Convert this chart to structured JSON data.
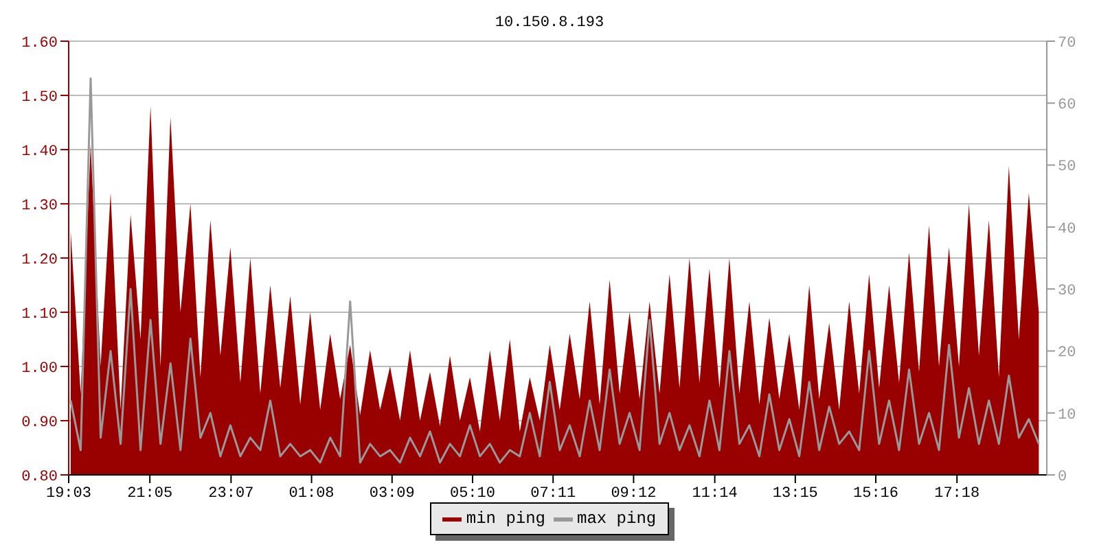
{
  "chart_data": {
    "type": "area",
    "title": "10.150.8.193",
    "x": [
      "--01-01T19:06",
      "--01-01T19:21",
      "--01-01T19:36",
      "--01-01T19:51",
      "--01-01T20:06",
      "--01-01T20:21",
      "--01-01T20:36",
      "--01-01T20:51",
      "--01-01T21:06",
      "--01-01T21:21",
      "--01-01T21:36",
      "--01-01T21:51",
      "--01-01T22:06",
      "--01-01T22:21",
      "--01-01T22:36",
      "--01-01T22:51",
      "--01-01T23:06",
      "--01-01T23:21",
      "--01-01T23:36",
      "--01-01T23:51",
      "--01-02T00:06",
      "--01-02T00:21",
      "--01-02T00:36",
      "--01-02T00:51",
      "--01-02T01:06",
      "--01-02T01:21",
      "--01-02T01:36",
      "--01-02T01:51",
      "--01-02T02:06",
      "--01-02T02:21",
      "--01-02T02:36",
      "--01-02T02:51",
      "--01-02T03:06",
      "--01-02T03:21",
      "--01-02T03:36",
      "--01-02T03:51",
      "--01-02T04:06",
      "--01-02T04:21",
      "--01-02T04:36",
      "--01-02T04:51",
      "--01-02T05:06",
      "--01-02T05:21",
      "--01-02T05:36",
      "--01-02T05:51",
      "--01-02T06:06",
      "--01-02T06:21",
      "--01-02T06:36",
      "--01-02T06:51",
      "--01-02T07:06",
      "--01-02T07:21",
      "--01-02T07:36",
      "--01-02T07:51",
      "--01-02T08:06",
      "--01-02T08:21",
      "--01-02T08:36",
      "--01-02T08:51",
      "--01-02T09:06",
      "--01-02T09:21",
      "--01-02T09:36",
      "--01-02T09:51",
      "--01-02T10:06",
      "--01-02T10:21",
      "--01-02T10:36",
      "--01-02T10:51",
      "--01-02T11:06",
      "--01-02T11:21",
      "--01-02T11:36",
      "--01-02T11:51",
      "--01-02T12:06",
      "--01-02T12:21",
      "--01-02T12:36",
      "--01-02T12:51",
      "--01-02T13:06",
      "--01-02T13:21",
      "--01-02T13:36",
      "--01-02T13:51",
      "--01-02T14:06",
      "--01-02T14:21",
      "--01-02T14:36",
      "--01-02T14:51",
      "--01-02T15:06",
      "--01-02T15:21",
      "--01-02T15:36",
      "--01-02T15:51",
      "--01-02T16:06",
      "--01-02T16:21",
      "--01-02T16:36",
      "--01-02T16:51",
      "--01-02T17:06",
      "--01-02T17:21",
      "--01-02T17:36",
      "--01-02T17:51",
      "--01-02T18:06",
      "--01-02T18:21",
      "--01-02T18:36",
      "--01-02T18:51",
      "--01-02T19:06",
      "--01-02T19:21"
    ],
    "series": [
      {
        "name": "min ping",
        "color": "#990000",
        "values": [
          1.25,
          0.95,
          1.41,
          1.0,
          1.32,
          0.92,
          1.28,
          1.05,
          1.48,
          1.0,
          1.46,
          1.1,
          1.3,
          0.98,
          1.27,
          1.02,
          1.22,
          0.97,
          1.2,
          0.95,
          1.15,
          0.96,
          1.13,
          0.93,
          1.1,
          0.92,
          1.06,
          0.94,
          1.04,
          0.91,
          1.03,
          0.92,
          1.0,
          0.9,
          1.03,
          0.9,
          0.99,
          0.89,
          1.02,
          0.9,
          0.98,
          0.88,
          1.03,
          0.9,
          1.05,
          0.88,
          0.98,
          0.9,
          1.04,
          0.92,
          1.06,
          0.94,
          1.12,
          0.93,
          1.16,
          0.95,
          1.1,
          0.94,
          1.12,
          0.95,
          1.17,
          0.96,
          1.2,
          0.97,
          1.18,
          0.96,
          1.2,
          0.95,
          1.12,
          0.93,
          1.09,
          0.94,
          1.06,
          0.92,
          1.15,
          0.94,
          1.08,
          0.92,
          1.12,
          0.95,
          1.17,
          0.96,
          1.15,
          0.97,
          1.21,
          0.99,
          1.26,
          1.0,
          1.22,
          1.0,
          1.3,
          1.02,
          1.27,
          0.98,
          1.37,
          1.05,
          1.32,
          1.1
        ]
      },
      {
        "name": "max ping",
        "type": "line",
        "axis": "y2",
        "color": "#999999",
        "values": [
          12,
          4,
          64,
          6,
          20,
          5,
          30,
          4,
          25,
          5,
          18,
          4,
          22,
          6,
          10,
          3,
          8,
          3,
          6,
          4,
          12,
          3,
          5,
          3,
          4,
          2,
          6,
          3,
          28,
          2,
          5,
          3,
          4,
          2,
          6,
          3,
          7,
          2,
          5,
          3,
          8,
          3,
          5,
          2,
          4,
          3,
          10,
          3,
          15,
          4,
          8,
          3,
          12,
          4,
          17,
          5,
          10,
          4,
          25,
          5,
          10,
          4,
          8,
          3,
          12,
          4,
          20,
          5,
          8,
          3,
          13,
          4,
          9,
          3,
          15,
          4,
          11,
          5,
          7,
          4,
          20,
          5,
          12,
          4,
          17,
          5,
          10,
          4,
          21,
          6,
          14,
          5,
          12,
          5,
          16,
          6,
          9,
          5
        ]
      }
    ],
    "xlim": [
      "--01-01T19:03",
      "--01-02T19:33"
    ],
    "xticks": [
      {
        "value": "--01-01T19:03",
        "label": "19:03"
      },
      {
        "value": "--01-01T21:05",
        "label": "21:05"
      },
      {
        "value": "--01-01T23:07",
        "label": "23:07"
      },
      {
        "value": "--01-02T01:08",
        "label": "01:08"
      },
      {
        "value": "--01-02T03:09",
        "label": "03:09"
      },
      {
        "value": "--01-02T05:10",
        "label": "05:10"
      },
      {
        "value": "--01-02T07:11",
        "label": "07:11"
      },
      {
        "value": "--01-02T09:12",
        "label": "09:12"
      },
      {
        "value": "--01-02T11:14",
        "label": "11:14"
      },
      {
        "value": "--01-02T13:15",
        "label": "13:15"
      },
      {
        "value": "--01-02T15:16",
        "label": "15:16"
      },
      {
        "value": "--01-02T17:18",
        "label": "17:18"
      }
    ],
    "ylim": [
      0.8,
      1.6
    ],
    "yticks": [
      {
        "value": 0.8,
        "label": "0.80"
      },
      {
        "value": 0.9,
        "label": "0.90"
      },
      {
        "value": 1.0,
        "label": "1.00"
      },
      {
        "value": 1.1,
        "label": "1.10"
      },
      {
        "value": 1.2,
        "label": "1.20"
      },
      {
        "value": 1.3,
        "label": "1.30"
      },
      {
        "value": 1.4,
        "label": "1.40"
      },
      {
        "value": 1.5,
        "label": "1.50"
      },
      {
        "value": 1.6,
        "label": "1.60"
      }
    ],
    "y2lim": [
      0,
      70
    ],
    "y2ticks": [
      0,
      10,
      20,
      30,
      40,
      50,
      60,
      70
    ],
    "grid": "y",
    "legend": "bottom"
  }
}
